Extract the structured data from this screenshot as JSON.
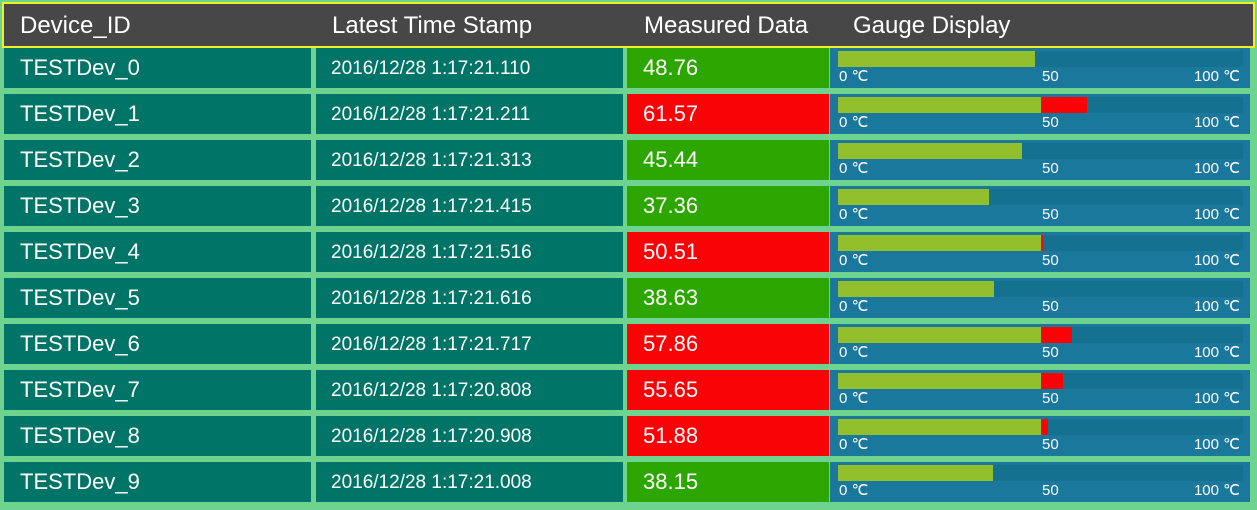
{
  "columns": {
    "device_id": "Device_ID",
    "timestamp": "Latest Time Stamp",
    "measured": "Measured Data",
    "gauge": "Gauge Display"
  },
  "gauge_scale": {
    "min_label": "0 ℃",
    "mid_label": "50",
    "max_label": "100 ℃",
    "min": 0,
    "max": 100,
    "threshold": 50
  },
  "colors": {
    "ok": "#2ea602",
    "alarm": "#f90406",
    "gauge_fill": "#93bf2d",
    "gauge_track": "#157190",
    "cell_bg": "#007467",
    "header_bg": "#474747",
    "header_border": "#f2ee2a"
  },
  "rows": [
    {
      "device": "TESTDev_0",
      "time": "2016/12/28 1:17:21.110",
      "value": "48.76"
    },
    {
      "device": "TESTDev_1",
      "time": "2016/12/28 1:17:21.211",
      "value": "61.57"
    },
    {
      "device": "TESTDev_2",
      "time": "2016/12/28 1:17:21.313",
      "value": "45.44"
    },
    {
      "device": "TESTDev_3",
      "time": "2016/12/28 1:17:21.415",
      "value": "37.36"
    },
    {
      "device": "TESTDev_4",
      "time": "2016/12/28 1:17:21.516",
      "value": "50.51"
    },
    {
      "device": "TESTDev_5",
      "time": "2016/12/28 1:17:21.616",
      "value": "38.63"
    },
    {
      "device": "TESTDev_6",
      "time": "2016/12/28 1:17:21.717",
      "value": "57.86"
    },
    {
      "device": "TESTDev_7",
      "time": "2016/12/28 1:17:20.808",
      "value": "55.65"
    },
    {
      "device": "TESTDev_8",
      "time": "2016/12/28 1:17:20.908",
      "value": "51.88"
    },
    {
      "device": "TESTDev_9",
      "time": "2016/12/28 1:17:21.008",
      "value": "38.15"
    }
  ]
}
